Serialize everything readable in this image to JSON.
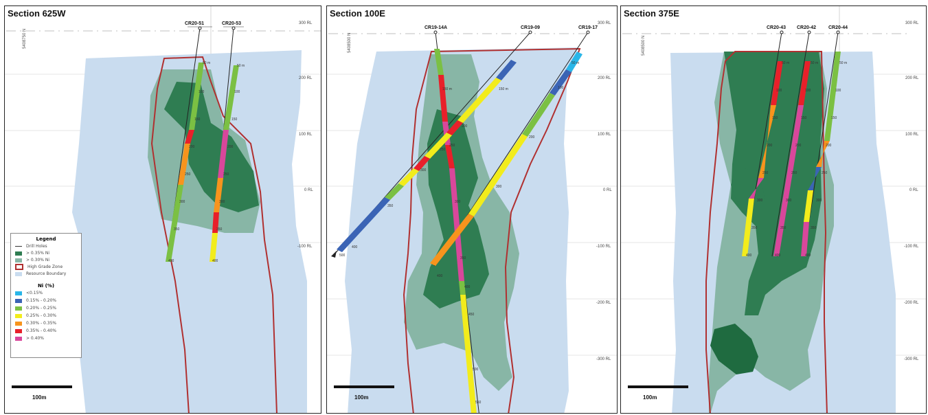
{
  "panels": [
    {
      "title": "Section 625W",
      "northing": "5408750 N",
      "rl_labels": [
        "300 RL",
        "200 RL",
        "100 RL",
        "0 RL",
        "-100 RL"
      ],
      "holes": [
        {
          "name": "CR20-51",
          "depths": [
            "50 m",
            "100",
            "150",
            "200",
            "250",
            "300",
            "350",
            "400"
          ]
        },
        {
          "name": "CR20-53",
          "depths": [
            "50 m",
            "100",
            "150",
            "200",
            "250",
            "300",
            "350",
            "400"
          ]
        }
      ],
      "scale_label": "100m"
    },
    {
      "title": "Section 100E",
      "northing": "5408500 N",
      "rl_labels": [
        "300 RL",
        "200 RL",
        "100 RL",
        "0 RL",
        "-100 RL",
        "-200 RL",
        "-300 RL"
      ],
      "holes": [
        {
          "name": "CR19-14A",
          "depths": [
            "150 m",
            "250",
            "300",
            "350",
            "400",
            "450",
            "500",
            "550"
          ]
        },
        {
          "name": "CR19-09",
          "depths": [
            "150 m",
            "200",
            "250",
            "300",
            "350",
            "400",
            "500"
          ]
        },
        {
          "name": "CR19-17",
          "depths": [
            "50 m",
            "100",
            "200",
            "300",
            "400"
          ]
        }
      ],
      "scale_label": "100m"
    },
    {
      "title": "Section 375E",
      "northing": "5408500 N",
      "rl_labels": [
        "300 RL",
        "200 RL",
        "100 RL",
        "0 RL",
        "-100 RL",
        "-200 RL",
        "-300 RL"
      ],
      "holes": [
        {
          "name": "CR20-43",
          "depths": [
            "50 m",
            "100",
            "150",
            "200",
            "250",
            "300",
            "350",
            "400"
          ]
        },
        {
          "name": "CR20-42",
          "depths": [
            "50 m",
            "100",
            "150",
            "200",
            "250",
            "300",
            "350",
            "400"
          ]
        },
        {
          "name": "CR20-44",
          "depths": [
            "50 m",
            "100",
            "150",
            "200",
            "250",
            "300",
            "350",
            "400"
          ]
        }
      ],
      "scale_label": "100m"
    }
  ],
  "legend": {
    "title": "Legend",
    "items": [
      {
        "label": "Drill Holes",
        "kind": "line"
      },
      {
        "label": "> 0.35% Ni",
        "color": "#2f7d52"
      },
      {
        "label": "> 0.30% Ni",
        "color": "#88b6a6"
      },
      {
        "label": "High Grade Zone",
        "kind": "box"
      },
      {
        "label": "Resource Boundary",
        "color": "#c9dcef"
      }
    ],
    "ni_title": "Ni (%)",
    "ni_items": [
      {
        "label": "<0.15%",
        "color": "#29b6e8"
      },
      {
        "label": "0.15% - 0.20%",
        "color": "#3b64b5"
      },
      {
        "label": "0.20% - 0.25%",
        "color": "#7bc043"
      },
      {
        "label": "0.25% - 0.30%",
        "color": "#f2ec1c"
      },
      {
        "label": "0.30% - 0.35%",
        "color": "#f7941d"
      },
      {
        "label": "0.35% - 0.40%",
        "color": "#e8202a"
      },
      {
        "label": "> 0.40%",
        "color": "#d9479b"
      }
    ]
  },
  "colors": {
    "resource": "#c9dcef",
    "ni30": "#88b6a6",
    "ni35": "#2f7d52",
    "hgz": "#b03030"
  }
}
